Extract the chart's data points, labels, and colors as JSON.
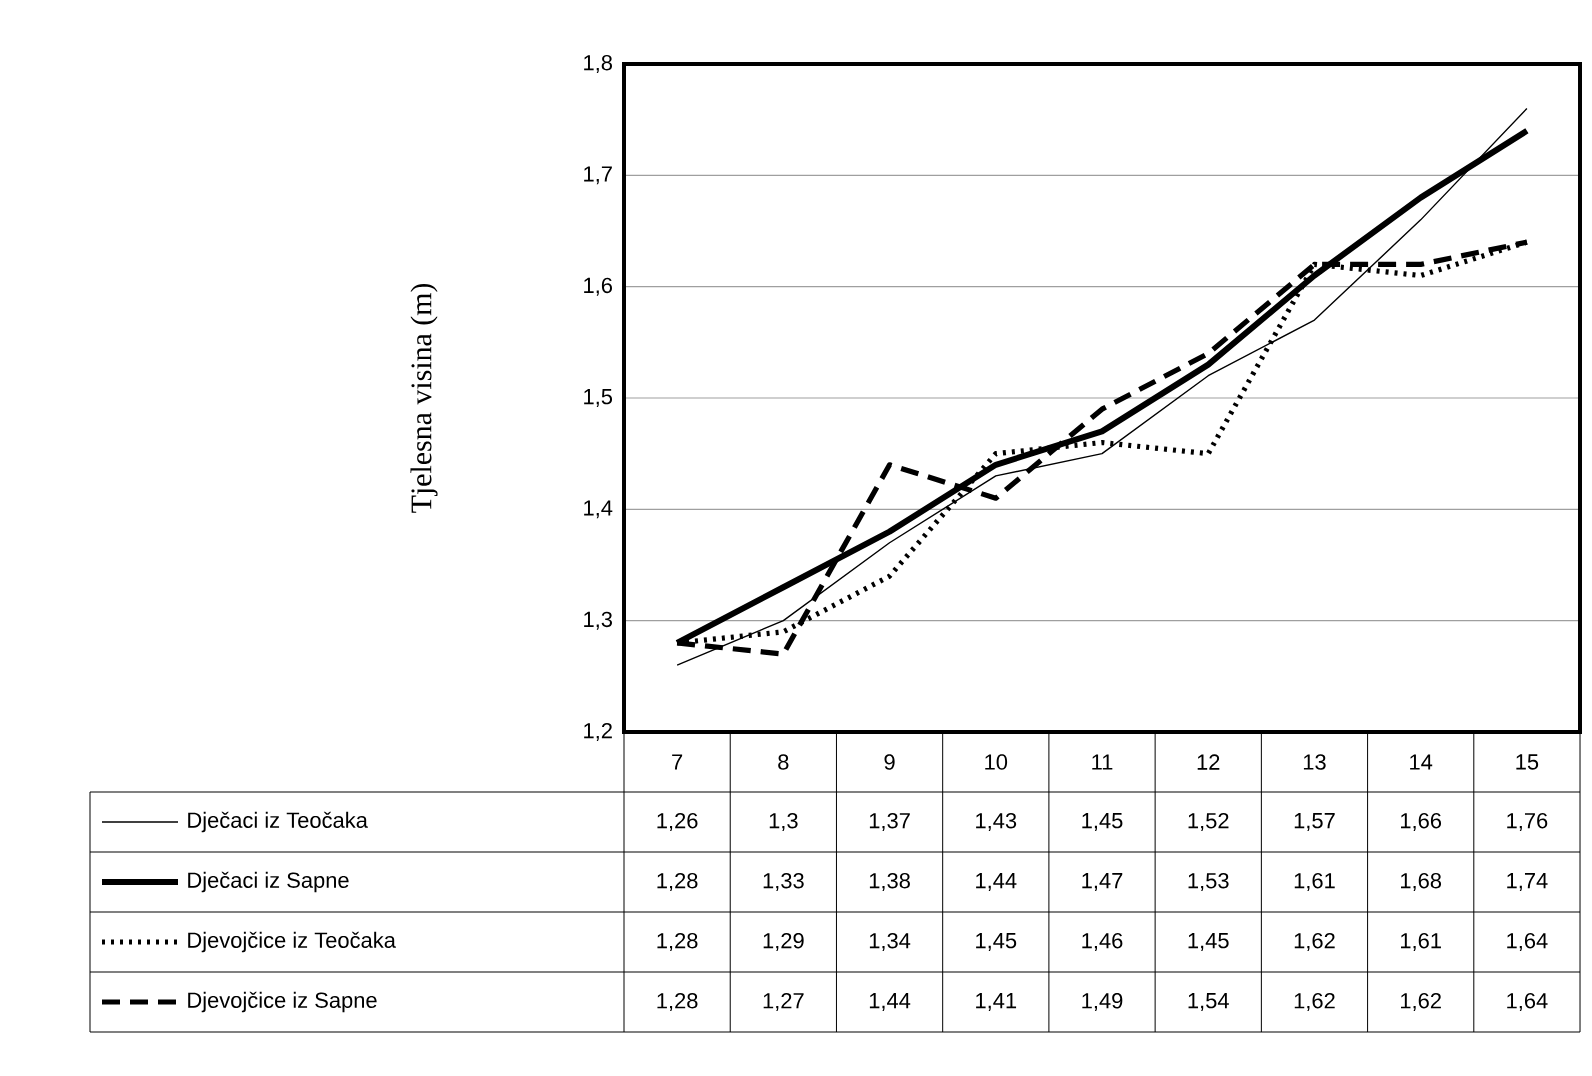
{
  "chart_data": {
    "type": "line",
    "ylabel": "Tjelesna visina (m)",
    "categories": [
      "7",
      "8",
      "9",
      "10",
      "11",
      "12",
      "13",
      "14",
      "15"
    ],
    "ylim": [
      1.2,
      1.8
    ],
    "yticks": [
      {
        "value": 1.2,
        "label": "1,2"
      },
      {
        "value": 1.3,
        "label": "1,3"
      },
      {
        "value": 1.4,
        "label": "1,4"
      },
      {
        "value": 1.5,
        "label": "1,5"
      },
      {
        "value": 1.6,
        "label": "1,6"
      },
      {
        "value": 1.7,
        "label": "1,7"
      },
      {
        "value": 1.8,
        "label": "1,8"
      }
    ],
    "grid": "y",
    "legend": "bottom",
    "series": [
      {
        "name": "Dječaci iz Teočaka",
        "color": "#000000",
        "line_style": "solid",
        "values": [
          1.26,
          1.3,
          1.37,
          1.43,
          1.45,
          1.52,
          1.57,
          1.66,
          1.76
        ],
        "value_labels": [
          "1,26",
          "1,3",
          "1,37",
          "1,43",
          "1,45",
          "1,52",
          "1,57",
          "1,66",
          "1,76"
        ]
      },
      {
        "name": "Dječaci iz Sapne",
        "color": "#000000",
        "line_style": "solid",
        "values": [
          1.28,
          1.33,
          1.38,
          1.44,
          1.47,
          1.53,
          1.61,
          1.68,
          1.74
        ],
        "value_labels": [
          "1,28",
          "1,33",
          "1,38",
          "1,44",
          "1,47",
          "1,53",
          "1,61",
          "1,68",
          "1,74"
        ]
      },
      {
        "name": "Djevojčice iz Teočaka",
        "color": "#000000",
        "line_style": "dotted",
        "values": [
          1.28,
          1.29,
          1.34,
          1.45,
          1.46,
          1.45,
          1.62,
          1.61,
          1.64
        ],
        "value_labels": [
          "1,28",
          "1,29",
          "1,34",
          "1,45",
          "1,46",
          "1,45",
          "1,62",
          "1,61",
          "1,64"
        ]
      },
      {
        "name": "Djevojčice iz Sapne",
        "color": "#000000",
        "line_style": "dashed",
        "values": [
          1.28,
          1.27,
          1.44,
          1.41,
          1.49,
          1.54,
          1.62,
          1.62,
          1.64
        ],
        "value_labels": [
          "1,28",
          "1,27",
          "1,44",
          "1,41",
          "1,49",
          "1,54",
          "1,62",
          "1,62",
          "1,64"
        ]
      }
    ]
  }
}
